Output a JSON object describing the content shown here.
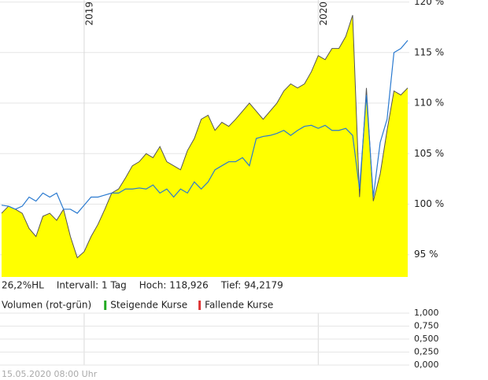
{
  "chart_data": [
    {
      "type": "line",
      "categories": [
        null,
        null,
        null,
        null,
        null,
        null,
        null,
        null,
        null,
        null,
        null,
        null,
        "2019",
        null,
        null,
        null,
        null,
        null,
        null,
        null,
        null,
        null,
        null,
        null,
        null,
        null,
        null,
        null,
        null,
        null,
        null,
        null,
        null,
        null,
        null,
        null,
        null,
        null,
        null,
        null,
        null,
        null,
        null,
        null,
        null,
        null,
        "2020",
        null,
        null,
        null,
        null,
        null,
        null,
        null,
        null,
        null,
        null,
        null,
        null,
        null
      ],
      "series": [
        {
          "style": "area",
          "color": "#ffff00",
          "values": [
            99.1,
            99.8,
            99.5,
            99.1,
            97.6,
            96.8,
            98.8,
            99.1,
            98.4,
            99.5,
            96.8,
            94.7,
            95.3,
            96.8,
            98.0,
            99.5,
            101.1,
            101.5,
            102.6,
            103.8,
            104.2,
            105.0,
            104.6,
            105.7,
            104.2,
            103.8,
            103.4,
            105.3,
            106.5,
            108.4,
            108.8,
            107.3,
            108.1,
            107.7,
            108.4,
            109.2,
            110.0,
            109.2,
            108.4,
            109.2,
            110.0,
            111.2,
            111.9,
            111.5,
            111.9,
            113.1,
            114.7,
            114.3,
            115.4,
            115.4,
            116.6,
            118.7,
            100.7,
            111.5,
            100.3,
            103.0,
            107.3,
            111.2,
            110.8,
            111.5
          ]
        },
        {
          "style": "line",
          "color": "#2a7ad0",
          "values": [
            99.9,
            99.8,
            99.5,
            99.8,
            100.7,
            100.3,
            101.1,
            100.7,
            101.1,
            99.5,
            99.5,
            99.1,
            99.9,
            100.7,
            100.7,
            100.9,
            101.1,
            101.1,
            101.5,
            101.5,
            101.6,
            101.5,
            101.9,
            101.1,
            101.5,
            100.7,
            101.5,
            101.1,
            102.2,
            101.5,
            102.2,
            103.4,
            103.8,
            104.2,
            104.2,
            104.6,
            103.8,
            106.5,
            106.7,
            106.8,
            107.0,
            107.3,
            106.8,
            107.3,
            107.7,
            107.8,
            107.5,
            107.8,
            107.3,
            107.3,
            107.5,
            106.8,
            101.5,
            110.8,
            100.7,
            106.1,
            108.4,
            115.0,
            115.4,
            116.2
          ]
        }
      ],
      "ylim": [
        92.8,
        120.2
      ],
      "yticks": [
        {
          "value": 95,
          "label": "95 %"
        },
        {
          "value": 100,
          "label": "100 %"
        },
        {
          "value": 105,
          "label": "105 %"
        },
        {
          "value": 110,
          "label": "110 %"
        },
        {
          "value": 115,
          "label": "115 %"
        },
        {
          "value": 120,
          "label": "120 %"
        }
      ],
      "grid": true,
      "stats": [
        "26,2%HL",
        "Intervall: 1 Tag",
        "Hoch: 118,926",
        "Tief: 94,2179"
      ]
    },
    {
      "type": "bar",
      "title": "Volumen (rot-grün)",
      "series": [
        {
          "name": "Steigende Kurse",
          "color": "#22aa22",
          "values": []
        },
        {
          "name": "Fallende Kurse",
          "color": "#dd3333",
          "values": []
        }
      ],
      "ylim": [
        0,
        1
      ],
      "yticks": [
        {
          "value": 1,
          "label": "1,000"
        },
        {
          "value": 0.75,
          "label": "0,750"
        },
        {
          "value": 0.5,
          "label": "0,500"
        },
        {
          "value": 0.25,
          "label": "0,250"
        },
        {
          "value": 0,
          "label": "0,000"
        }
      ],
      "grid": true
    }
  ],
  "footer": "15.05.2020 08:00 Uhr"
}
